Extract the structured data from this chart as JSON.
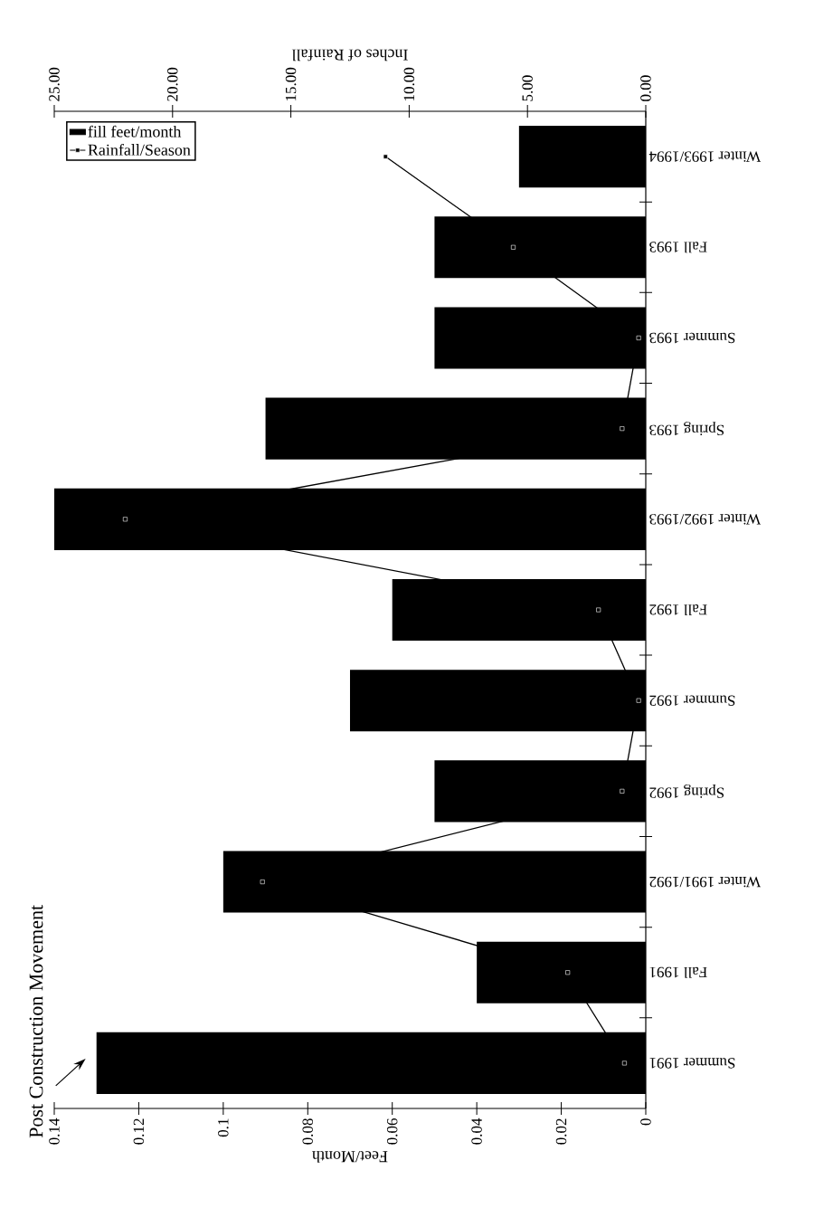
{
  "chart_data": {
    "type": "bar",
    "orientation": "horizontal",
    "xlabel": "Feet/Month",
    "x2label": "Inches of Rainfall",
    "annotations": [
      {
        "text": "Post Construction Movement",
        "x": 0.13,
        "y": "Summer 1991"
      }
    ],
    "categories": [
      "Winter 1993/1994",
      "Fall 1993",
      "Summer 1993",
      "Spring 1993",
      "Winter 1992/1993",
      "Fall 1992",
      "Summer 1992",
      "Spring 1992",
      "Winter 1991/1992",
      "Fall 1991",
      "Summer 1991"
    ],
    "series": [
      {
        "name": "fill feet/month",
        "color": "#000000",
        "values": [
          0.03,
          0.05,
          0.05,
          0.09,
          0.14,
          0.06,
          0.07,
          0.05,
          0.1,
          0.04,
          0.13
        ]
      },
      {
        "name": "Rainfall/Season",
        "type": "line",
        "axis": "x2",
        "color": "#000000",
        "values": [
          11.0,
          5.6,
          0.3,
          1.0,
          22.0,
          2.0,
          0.3,
          1.0,
          16.2,
          3.3,
          0.9
        ]
      }
    ],
    "xlim": [
      0.14,
      0
    ],
    "xticks": [
      0,
      0.02,
      0.04,
      0.06,
      0.08,
      0.1,
      0.12,
      0.14
    ],
    "x2lim": [
      25,
      0
    ],
    "x2ticks": [
      {
        "value": 0,
        "label": "0.00"
      },
      {
        "value": 5,
        "label": "5.00"
      },
      {
        "value": 10,
        "label": "10.00"
      },
      {
        "value": 15,
        "label": "15.00"
      },
      {
        "value": 20,
        "label": "20.00"
      },
      {
        "value": 25,
        "label": "25.00"
      }
    ],
    "legend": "top left",
    "marker": "square"
  }
}
